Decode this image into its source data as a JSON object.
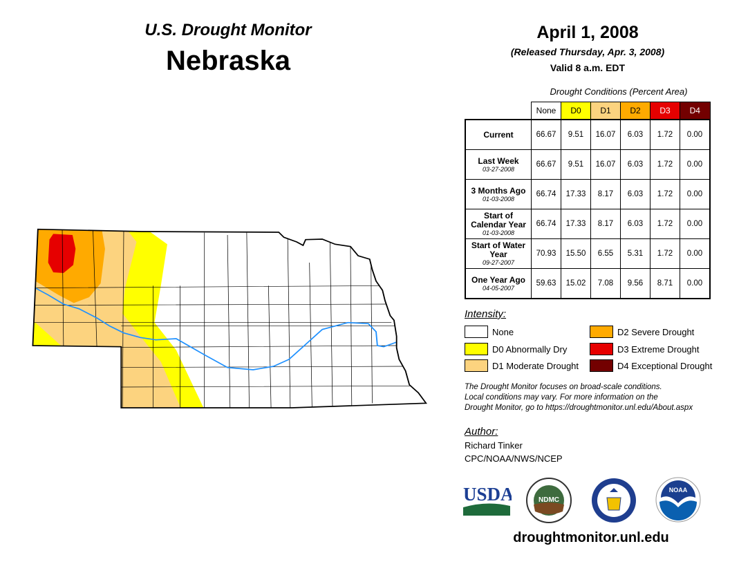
{
  "header": {
    "title": "U.S. Drought Monitor",
    "state": "Nebraska",
    "date": "April 1, 2008",
    "released": "(Released Thursday, Apr. 3, 2008)",
    "valid": "Valid 8 a.m. EDT"
  },
  "chart_data": {
    "type": "table",
    "title": "Drought Conditions (Percent Area)",
    "columns": [
      "None",
      "D0",
      "D1",
      "D2",
      "D3",
      "D4"
    ],
    "column_colors": [
      "#ffffff",
      "#ffff00",
      "#fcd37f",
      "#ffaa00",
      "#e60000",
      "#730000"
    ],
    "rows": [
      {
        "label": "Current",
        "sub": "",
        "values": [
          "66.67",
          "9.51",
          "16.07",
          "6.03",
          "1.72",
          "0.00"
        ]
      },
      {
        "label": "Last Week",
        "sub": "03-27-2008",
        "values": [
          "66.67",
          "9.51",
          "16.07",
          "6.03",
          "1.72",
          "0.00"
        ]
      },
      {
        "label": "3 Months Ago",
        "sub": "01-03-2008",
        "values": [
          "66.74",
          "17.33",
          "8.17",
          "6.03",
          "1.72",
          "0.00"
        ]
      },
      {
        "label": "Start of Calendar Year",
        "sub": "01-03-2008",
        "values": [
          "66.74",
          "17.33",
          "8.17",
          "6.03",
          "1.72",
          "0.00"
        ]
      },
      {
        "label": "Start of Water Year",
        "sub": "09-27-2007",
        "values": [
          "70.93",
          "15.50",
          "6.55",
          "5.31",
          "1.72",
          "0.00"
        ]
      },
      {
        "label": "One Year Ago",
        "sub": "04-05-2007",
        "values": [
          "59.63",
          "15.02",
          "7.08",
          "9.56",
          "8.71",
          "0.00"
        ]
      }
    ]
  },
  "legend": {
    "title": "Intensity:",
    "items": [
      {
        "label": "None",
        "color": "#ffffff"
      },
      {
        "label": "D0 Abnormally Dry",
        "color": "#ffff00"
      },
      {
        "label": "D1 Moderate Drought",
        "color": "#fcd37f"
      },
      {
        "label": "D2 Severe Drought",
        "color": "#ffaa00"
      },
      {
        "label": "D3 Extreme Drought",
        "color": "#e60000"
      },
      {
        "label": "D4 Exceptional Drought",
        "color": "#730000"
      }
    ]
  },
  "note": [
    "The Drought Monitor focuses on broad-scale conditions.",
    "Local conditions may vary. For more information on the",
    "Drought Monitor, go to https://droughtmonitor.unl.edu/About.aspx"
  ],
  "author": {
    "heading": "Author:",
    "name": "Richard Tinker",
    "org": "CPC/NOAA/NWS/NCEP"
  },
  "logos": {
    "usda": "USDA",
    "ndmc": "NDMC",
    "noaa": "NOAA"
  },
  "url": "droughtmonitor.unl.edu"
}
